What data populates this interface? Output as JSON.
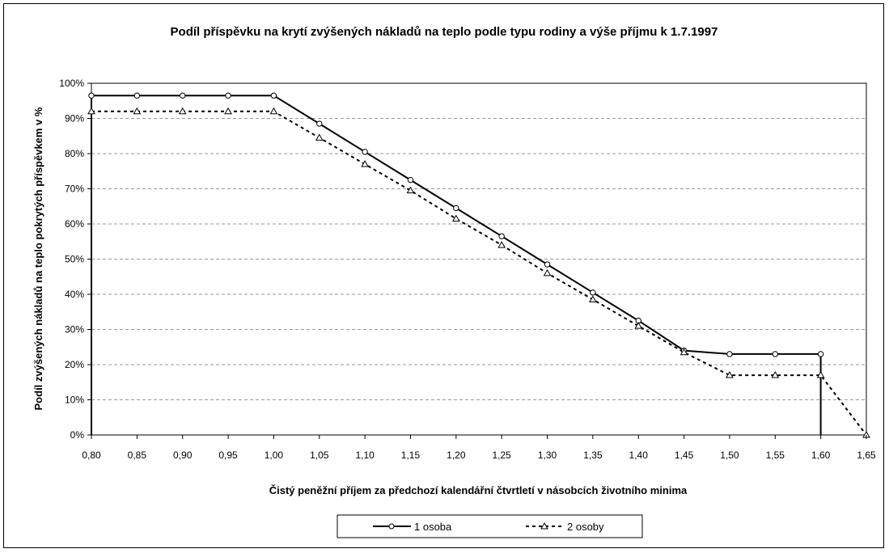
{
  "chart_data": {
    "type": "line",
    "title": "Podíl příspěvku na krytí zvýšených nákladů na teplo podle typu rodiny a výše příjmu k 1.7.1997",
    "xlabel": "Čistý peněžní příjem za předchozí kalendářní čtvrtletí v násobcích životního minima",
    "ylabel": "Podíl zvýšených nákladů na teplo pokrytých příspěvkem v %",
    "x_ticks": [
      "0,80",
      "0,85",
      "0,90",
      "0,95",
      "1,00",
      "1,05",
      "1,10",
      "1,15",
      "1,20",
      "1,25",
      "1,30",
      "1,35",
      "1,40",
      "1,45",
      "1,50",
      "1,55",
      "1,60",
      "1,65"
    ],
    "y_ticks": [
      "0%",
      "10%",
      "20%",
      "30%",
      "40%",
      "50%",
      "60%",
      "70%",
      "80%",
      "90%",
      "100%"
    ],
    "xlim": [
      0.8,
      1.65
    ],
    "ylim": [
      0,
      100
    ],
    "grid": "horizontal dashed",
    "legend_position": "bottom",
    "series": [
      {
        "name": "1 osoba",
        "line_style": "solid",
        "marker": "circle",
        "points": [
          [
            0.8,
            96.5
          ],
          [
            0.85,
            96.5
          ],
          [
            0.9,
            96.5
          ],
          [
            0.95,
            96.5
          ],
          [
            1.0,
            96.5
          ],
          [
            1.05,
            88.5
          ],
          [
            1.1,
            80.5
          ],
          [
            1.15,
            72.5
          ],
          [
            1.2,
            64.5
          ],
          [
            1.25,
            56.5
          ],
          [
            1.3,
            48.5
          ],
          [
            1.35,
            40.5
          ],
          [
            1.4,
            32.5
          ],
          [
            1.45,
            24.0
          ],
          [
            1.5,
            23.0
          ],
          [
            1.55,
            23.0
          ],
          [
            1.6,
            23.0
          ]
        ],
        "line_extras": [
          [
            0.8,
            0
          ],
          [
            1.6,
            0
          ]
        ]
      },
      {
        "name": "2 osoby",
        "line_style": "dashed",
        "marker": "triangle",
        "points": [
          [
            0.8,
            92.0
          ],
          [
            0.85,
            92.0
          ],
          [
            0.9,
            92.0
          ],
          [
            0.95,
            92.0
          ],
          [
            1.0,
            92.0
          ],
          [
            1.05,
            84.5
          ],
          [
            1.1,
            77.0
          ],
          [
            1.15,
            69.5
          ],
          [
            1.2,
            61.5
          ],
          [
            1.25,
            54.0
          ],
          [
            1.3,
            46.0
          ],
          [
            1.35,
            38.5
          ],
          [
            1.4,
            31.0
          ],
          [
            1.45,
            23.5
          ],
          [
            1.5,
            17.0
          ],
          [
            1.55,
            17.0
          ],
          [
            1.6,
            17.0
          ],
          [
            1.65,
            0
          ]
        ]
      }
    ]
  }
}
